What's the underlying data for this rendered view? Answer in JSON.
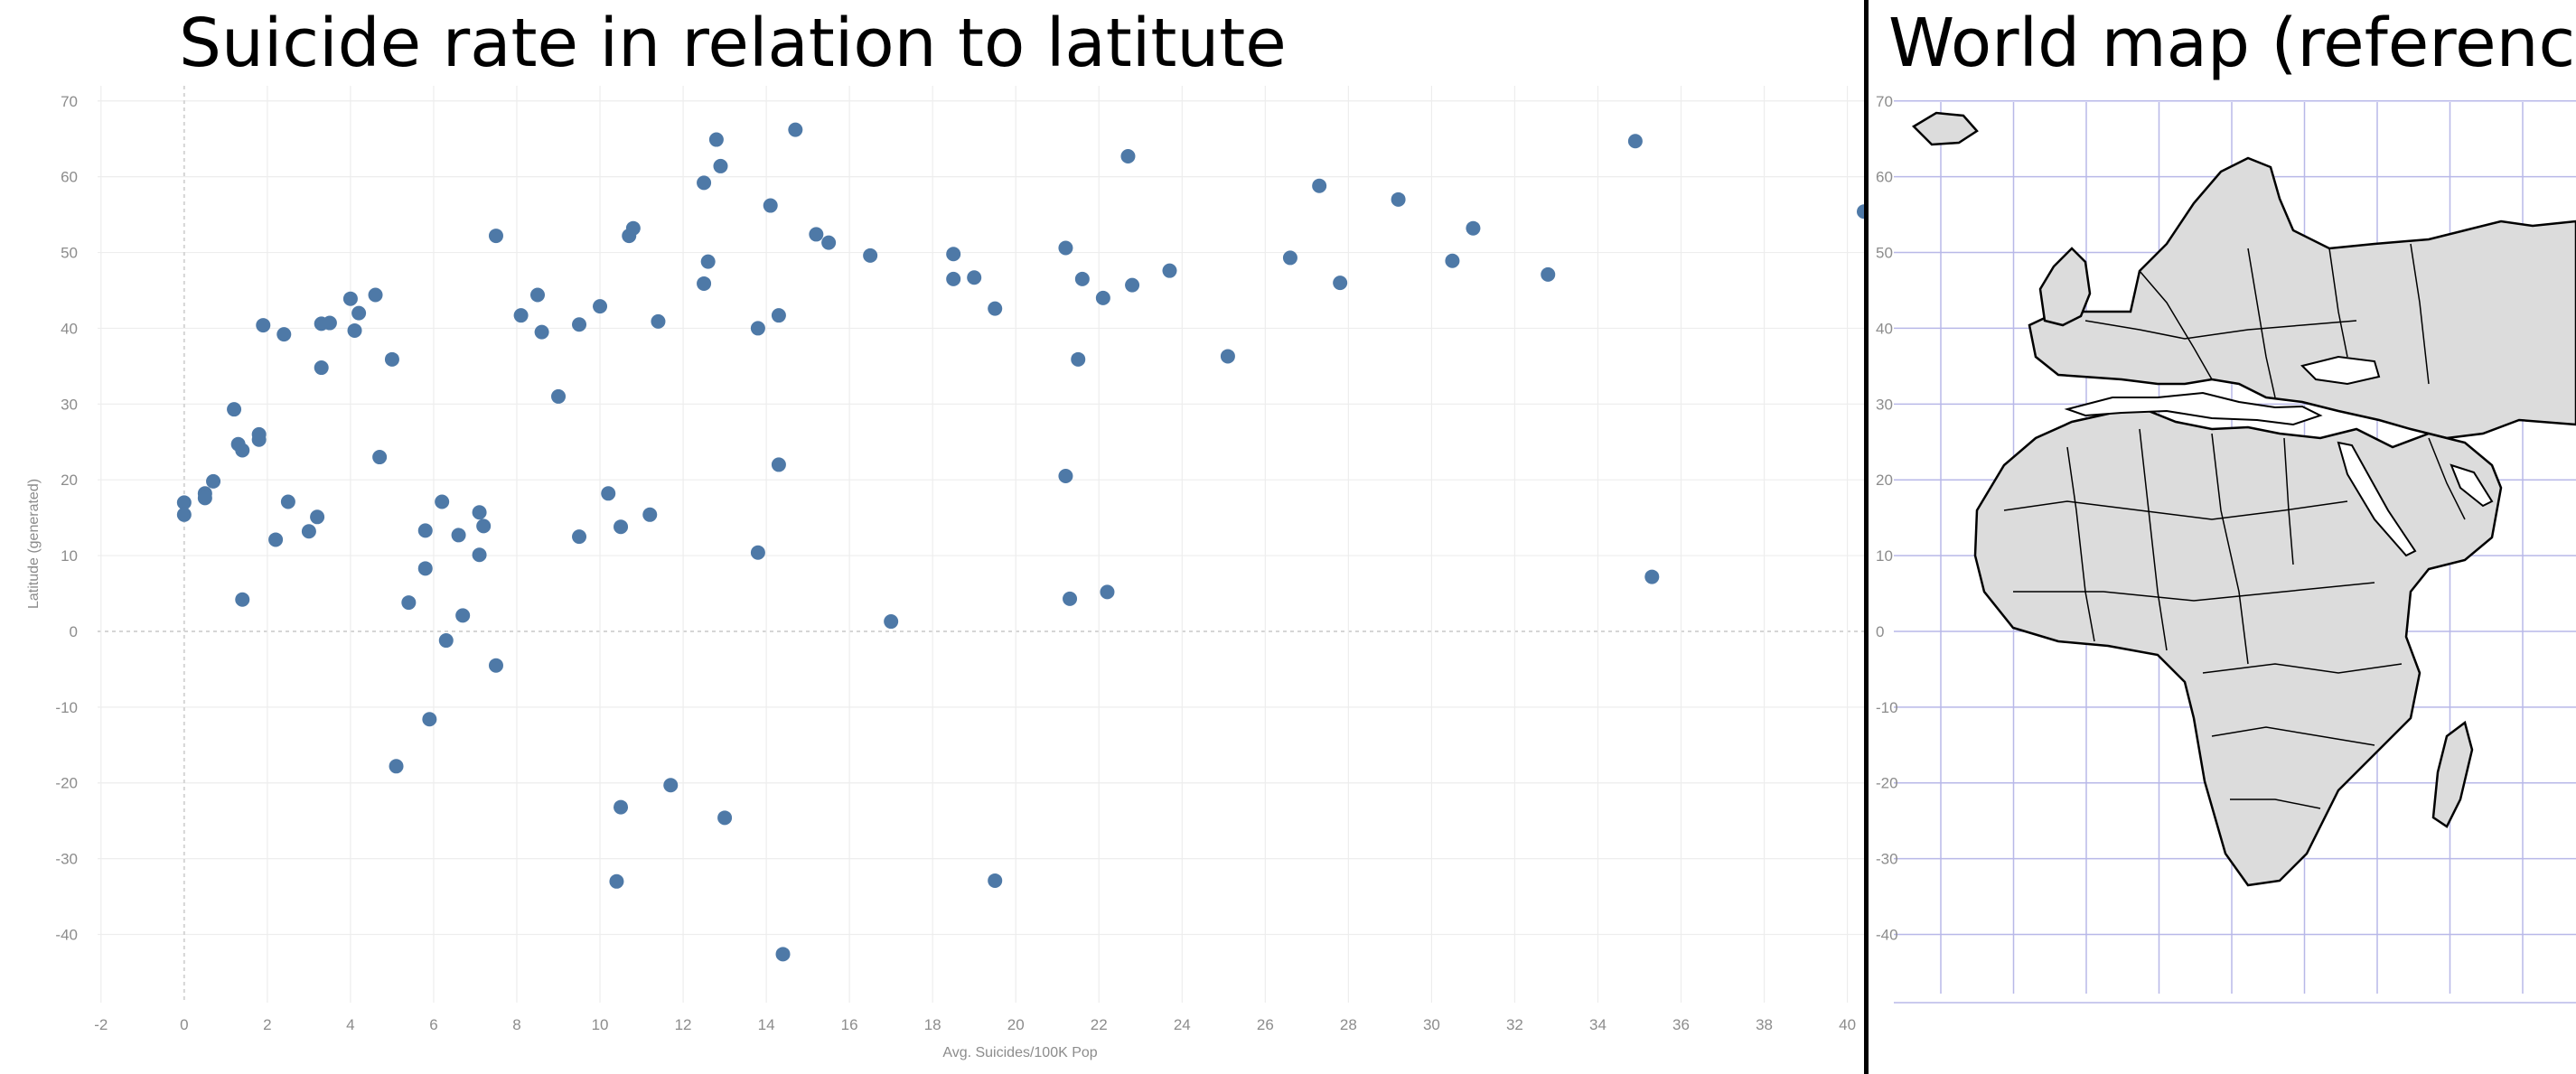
{
  "left_panel": {
    "title": "Suicide rate in relation to latitute"
  },
  "right_panel": {
    "title": "World map (reference)"
  },
  "colors": {
    "marker": "#4e79a7",
    "grid": "#ededed",
    "zero_line": "#d5d5d5",
    "tick_text": "#8c8c8c",
    "map_land": "#dcdcdc",
    "map_border": "#000000",
    "map_grid": "#b8b8e8"
  },
  "chart_data": [
    {
      "type": "scatter",
      "title": "Suicide rate in relation to latitute",
      "xlabel": "Avg. Suicides/100K Pop",
      "ylabel": "Latitude (generated)",
      "xlim": [
        -2.3,
        40.4
      ],
      "ylim": [
        -49,
        72
      ],
      "xticks": [
        -2,
        0,
        2,
        4,
        6,
        8,
        10,
        12,
        14,
        16,
        18,
        20,
        22,
        24,
        26,
        28,
        30,
        32,
        34,
        36,
        38,
        40
      ],
      "yticks": [
        70,
        60,
        50,
        40,
        30,
        20,
        10,
        0,
        -10,
        -20,
        -30,
        -40
      ],
      "grid": true,
      "series": [
        {
          "points": [
            [
              0.0,
              17.0
            ],
            [
              0.0,
              15.4
            ],
            [
              0.5,
              18.2
            ],
            [
              0.5,
              17.6
            ],
            [
              0.7,
              19.8
            ],
            [
              1.2,
              29.3
            ],
            [
              1.3,
              24.7
            ],
            [
              1.4,
              23.9
            ],
            [
              1.4,
              4.2
            ],
            [
              1.8,
              25.3
            ],
            [
              1.8,
              26.0
            ],
            [
              1.9,
              40.4
            ],
            [
              2.2,
              12.1
            ],
            [
              2.4,
              39.2
            ],
            [
              2.5,
              17.1
            ],
            [
              3.0,
              13.2
            ],
            [
              3.2,
              15.1
            ],
            [
              3.3,
              40.6
            ],
            [
              3.3,
              34.8
            ],
            [
              3.5,
              40.7
            ],
            [
              4.0,
              43.9
            ],
            [
              4.1,
              39.7
            ],
            [
              4.2,
              42.0
            ],
            [
              4.6,
              44.4
            ],
            [
              4.7,
              23.0
            ],
            [
              5.0,
              35.9
            ],
            [
              5.1,
              -17.8
            ],
            [
              5.4,
              3.8
            ],
            [
              5.8,
              13.3
            ],
            [
              5.8,
              8.3
            ],
            [
              5.9,
              -11.6
            ],
            [
              6.2,
              17.1
            ],
            [
              6.3,
              -1.2
            ],
            [
              6.6,
              12.7
            ],
            [
              6.7,
              2.1
            ],
            [
              7.1,
              15.7
            ],
            [
              7.1,
              10.1
            ],
            [
              7.2,
              13.9
            ],
            [
              7.5,
              52.2
            ],
            [
              7.5,
              -4.5
            ],
            [
              8.1,
              41.7
            ],
            [
              8.5,
              44.4
            ],
            [
              8.6,
              39.5
            ],
            [
              9.0,
              31.0
            ],
            [
              9.5,
              12.5
            ],
            [
              9.5,
              40.5
            ],
            [
              10.0,
              42.9
            ],
            [
              10.2,
              18.2
            ],
            [
              10.5,
              13.8
            ],
            [
              10.5,
              -23.2
            ],
            [
              10.4,
              -33.0
            ],
            [
              10.7,
              52.2
            ],
            [
              10.8,
              53.2
            ],
            [
              11.2,
              15.4
            ],
            [
              11.4,
              40.9
            ],
            [
              11.7,
              -20.3
            ],
            [
              12.5,
              59.2
            ],
            [
              12.5,
              45.9
            ],
            [
              12.6,
              48.8
            ],
            [
              12.8,
              64.9
            ],
            [
              12.9,
              61.4
            ],
            [
              13.0,
              -24.6
            ],
            [
              13.8,
              40.0
            ],
            [
              13.8,
              10.4
            ],
            [
              14.1,
              56.2
            ],
            [
              14.3,
              41.7
            ],
            [
              14.3,
              22.0
            ],
            [
              14.4,
              -42.6
            ],
            [
              14.7,
              66.2
            ],
            [
              15.2,
              52.4
            ],
            [
              15.5,
              51.3
            ],
            [
              16.5,
              49.6
            ],
            [
              17.0,
              1.3
            ],
            [
              18.5,
              49.8
            ],
            [
              18.5,
              46.5
            ],
            [
              19.0,
              46.7
            ],
            [
              19.5,
              42.6
            ],
            [
              19.5,
              -32.9
            ],
            [
              21.2,
              50.6
            ],
            [
              21.2,
              20.5
            ],
            [
              21.3,
              4.3
            ],
            [
              21.5,
              35.9
            ],
            [
              21.6,
              46.5
            ],
            [
              22.1,
              44.0
            ],
            [
              22.2,
              5.2
            ],
            [
              22.7,
              62.7
            ],
            [
              22.8,
              45.7
            ],
            [
              23.7,
              47.6
            ],
            [
              25.1,
              36.3
            ],
            [
              26.6,
              49.3
            ],
            [
              27.3,
              58.8
            ],
            [
              27.8,
              46.0
            ],
            [
              29.2,
              57.0
            ],
            [
              30.5,
              48.9
            ],
            [
              31.0,
              53.2
            ],
            [
              32.8,
              47.1
            ],
            [
              34.9,
              64.7
            ],
            [
              35.3,
              7.2
            ],
            [
              40.4,
              55.4
            ]
          ]
        }
      ]
    },
    {
      "type": "map",
      "title": "World map (reference)",
      "yticks": [
        70,
        60,
        50,
        40,
        30,
        20,
        10,
        0,
        -10,
        -20,
        -30,
        -40
      ]
    }
  ]
}
